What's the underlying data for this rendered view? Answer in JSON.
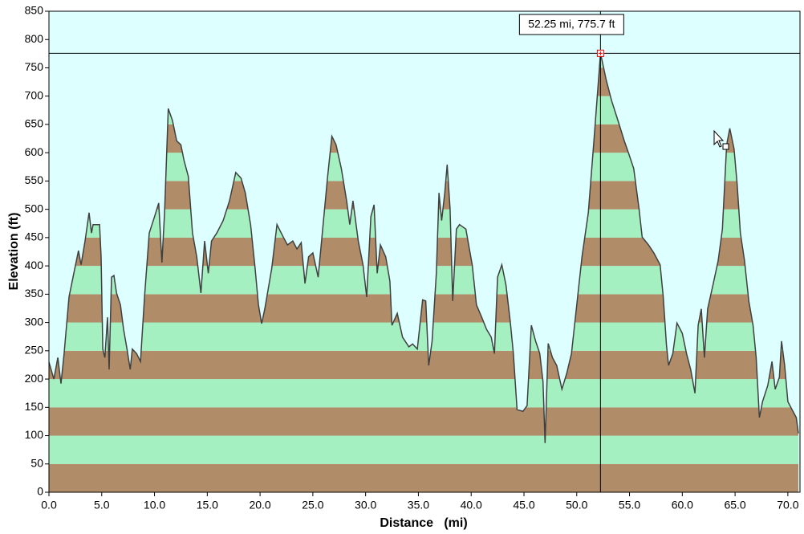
{
  "chart_data": {
    "type": "area",
    "x_label": "Distance   (mi)",
    "y_label": "Elevation (ft)",
    "x": [
      0.0,
      0.46,
      0.84,
      1.14,
      1.44,
      1.9,
      2.36,
      2.8,
      3.04,
      3.42,
      3.8,
      4.03,
      4.18,
      4.8,
      4.94,
      5.1,
      5.3,
      5.55,
      5.7,
      5.93,
      6.16,
      6.4,
      6.77,
      7.07,
      7.4,
      7.7,
      7.9,
      8.3,
      8.67,
      9.05,
      9.5,
      10.0,
      10.4,
      10.7,
      10.95,
      11.3,
      11.7,
      12.1,
      12.5,
      12.8,
      13.2,
      13.6,
      14.0,
      14.4,
      14.75,
      15.1,
      15.4,
      15.9,
      16.5,
      17.1,
      17.7,
      18.2,
      18.6,
      19.1,
      19.5,
      19.85,
      20.15,
      20.45,
      21.1,
      21.6,
      22.2,
      22.6,
      23.1,
      23.5,
      23.9,
      24.26,
      24.6,
      25.0,
      25.5,
      25.9,
      26.4,
      26.8,
      27.2,
      27.7,
      28.2,
      28.5,
      28.8,
      29.3,
      29.75,
      30.1,
      30.5,
      30.8,
      31.1,
      31.4,
      31.9,
      32.3,
      32.5,
      33.0,
      33.5,
      34.1,
      34.45,
      34.9,
      35.4,
      35.7,
      35.98,
      36.3,
      36.7,
      36.95,
      37.2,
      37.5,
      37.73,
      38.0,
      38.25,
      38.6,
      38.9,
      39.5,
      40.1,
      40.5,
      41.0,
      41.45,
      41.9,
      42.2,
      42.5,
      42.9,
      43.3,
      43.7,
      44.0,
      44.35,
      44.9,
      45.3,
      45.7,
      46.1,
      46.5,
      46.8,
      47.0,
      47.3,
      47.7,
      48.1,
      48.6,
      49.05,
      49.5,
      50.0,
      50.5,
      51.1,
      51.6,
      52.25,
      52.8,
      53.3,
      53.9,
      54.5,
      54.9,
      55.4,
      55.9,
      56.2,
      56.8,
      57.3,
      57.9,
      58.2,
      58.5,
      58.7,
      59.1,
      59.5,
      60.0,
      60.4,
      60.8,
      61.2,
      61.5,
      61.8,
      62.1,
      62.4,
      62.9,
      63.4,
      63.8,
      64.2,
      64.5,
      64.9,
      65.2,
      65.5,
      65.9,
      66.3,
      66.7,
      67.0,
      67.3,
      67.6,
      68.1,
      68.5,
      68.8,
      69.2,
      69.4,
      69.7,
      70.0,
      70.4,
      70.8,
      71.0
    ],
    "values": [
      230,
      200,
      238,
      192,
      245,
      345,
      387,
      427,
      402,
      444,
      494,
      458,
      473,
      473,
      416,
      253,
      238,
      309,
      217,
      380,
      383,
      352,
      331,
      288,
      253,
      217,
      253,
      245,
      231,
      345,
      458,
      487,
      511,
      406,
      494,
      678,
      657,
      621,
      614,
      586,
      558,
      458,
      416,
      352,
      444,
      387,
      444,
      458,
      480,
      515,
      565,
      555,
      529,
      473,
      402,
      331,
      298,
      324,
      395,
      473,
      451,
      437,
      444,
      430,
      441,
      369,
      416,
      423,
      380,
      458,
      558,
      629,
      614,
      572,
      515,
      473,
      515,
      444,
      402,
      345,
      487,
      508,
      387,
      437,
      416,
      373,
      295,
      316,
      274,
      257,
      262,
      253,
      340,
      338,
      224,
      267,
      387,
      529,
      480,
      529,
      579,
      501,
      338,
      465,
      473,
      465,
      402,
      331,
      309,
      288,
      274,
      245,
      380,
      402,
      366,
      302,
      245,
      146,
      143,
      153,
      295,
      267,
      245,
      196,
      87,
      263,
      238,
      224,
      182,
      210,
      245,
      331,
      416,
      494,
      614,
      775.7,
      728,
      692,
      657,
      621,
      600,
      572,
      501,
      451,
      437,
      423,
      402,
      345,
      260,
      224,
      245,
      299,
      281,
      245,
      217,
      175,
      295,
      324,
      238,
      324,
      366,
      409,
      465,
      614,
      643,
      607,
      544,
      458,
      409,
      338,
      295,
      238,
      132,
      160,
      189,
      231,
      182,
      203,
      267,
      224,
      160,
      146,
      132,
      104
    ],
    "xlim": [
      0,
      71.15
    ],
    "ylim": [
      0,
      850
    ],
    "xticks": [
      {
        "value": 0,
        "label": "0.0"
      },
      {
        "value": 5,
        "label": "5.0"
      },
      {
        "value": 10,
        "label": "10.0"
      },
      {
        "value": 15,
        "label": "15.0"
      },
      {
        "value": 20,
        "label": "20.0"
      },
      {
        "value": 25,
        "label": "25.0"
      },
      {
        "value": 30,
        "label": "30.0"
      },
      {
        "value": 35,
        "label": "35.0"
      },
      {
        "value": 40,
        "label": "40.0"
      },
      {
        "value": 45,
        "label": "45.0"
      },
      {
        "value": 50,
        "label": "50.0"
      },
      {
        "value": 55,
        "label": "55.0"
      },
      {
        "value": 60,
        "label": "60.0"
      },
      {
        "value": 65,
        "label": "65.0"
      },
      {
        "value": 70,
        "label": "70.0"
      }
    ],
    "yticks": [
      0,
      50,
      100,
      150,
      200,
      250,
      300,
      350,
      400,
      450,
      500,
      550,
      600,
      650,
      700,
      750,
      800,
      850
    ],
    "band_colors": [
      "#b08c68",
      "#a4f0c0"
    ],
    "background": "#ddffff",
    "line_color": "#404040",
    "crosshair": {
      "x": 52.25,
      "y": 775.7,
      "label": "52.25 mi, 775.7 ft"
    }
  }
}
